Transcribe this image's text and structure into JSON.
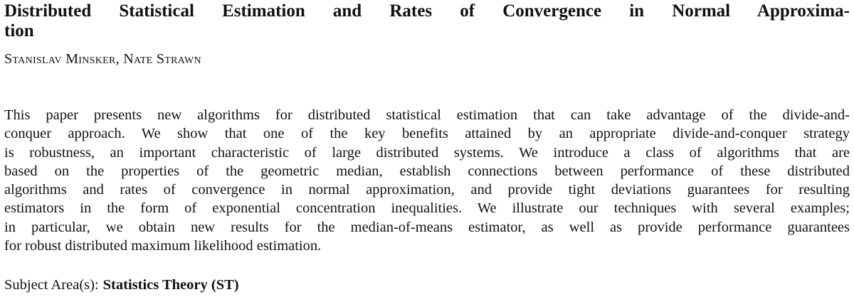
{
  "title": {
    "lines": [
      "Distributed Statistical Estimation and Rates of Convergence in Normal Approxima-",
      "tion"
    ]
  },
  "authors": "Stanislav Minsker, Nate Strawn",
  "abstract": {
    "lines": [
      "This paper presents new algorithms for distributed statistical estimation that can take advantage of the divide-and-",
      "conquer approach. We show that one of the key benefits attained by an appropriate divide-and-conquer strategy",
      "is robustness, an important characteristic of large distributed systems. We introduce a class of algorithms that are",
      "based on the properties of the geometric median, establish connections between performance of these distributed",
      "algorithms and rates of convergence in normal approximation, and provide tight deviations guarantees for resulting",
      "estimators in the form of exponential concentration inequalities. We illustrate our techniques with several examples;",
      "in particular, we obtain new results for the median-of-means estimator, as well as provide performance guarantees",
      "for robust distributed maximum likelihood estimation."
    ]
  },
  "subject": {
    "label": "Subject Area(s):",
    "value": "Statistics Theory (ST)"
  }
}
